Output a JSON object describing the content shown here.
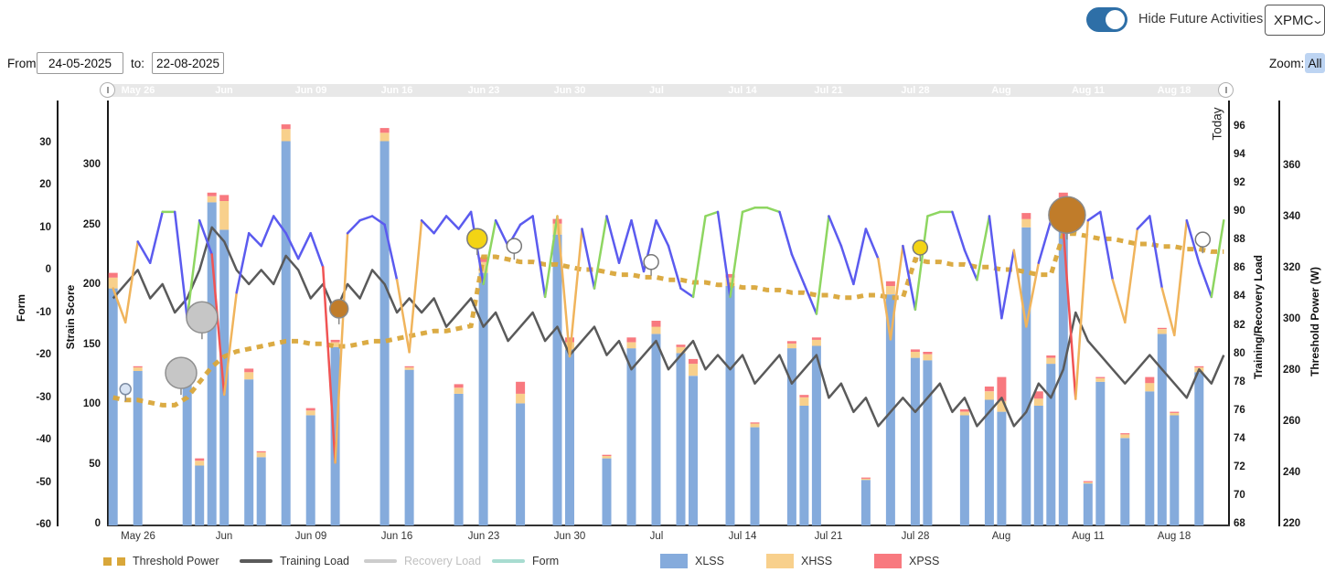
{
  "header": {
    "toggle_label": "Hide Future Activities",
    "metric_select": "XPMC",
    "from_label": "From:",
    "from_value": "24-05-2025",
    "to_label": "to:",
    "to_value": "22-08-2025",
    "zoom_label": "Zoom:",
    "zoom_all_label": "All"
  },
  "today_label": "Today",
  "axes": {
    "form": {
      "title": "Form",
      "ticks": [
        30,
        20,
        10,
        0,
        -10,
        -20,
        -30,
        -40,
        -50,
        -60
      ]
    },
    "strain": {
      "title": "Strain Score",
      "ticks": [
        300,
        250,
        200,
        150,
        100,
        50,
        0
      ]
    },
    "load": {
      "title": "Training/Recovery Load",
      "ticks": [
        96,
        94,
        92,
        90,
        88,
        86,
        84,
        82,
        80,
        78,
        76,
        74,
        72,
        70,
        68
      ]
    },
    "power": {
      "title": "Threshold Power (W)",
      "ticks": [
        360,
        340,
        320,
        300,
        280,
        260,
        240,
        220
      ]
    }
  },
  "legend": {
    "items": [
      {
        "label": "Threshold Power",
        "swatch": "dash",
        "color": "#d9a73a",
        "dim": false
      },
      {
        "label": "Training Load",
        "swatch": "line",
        "color": "#5a5a5a",
        "dim": false
      },
      {
        "label": "Recovery Load",
        "swatch": "line",
        "color": "#cccccc",
        "dim": true
      },
      {
        "label": "Form",
        "swatch": "line",
        "color": "#a8dcd0",
        "dim": false
      },
      {
        "label": "XLSS",
        "swatch": "box",
        "color": "#85abdc",
        "dim": false
      },
      {
        "label": "XHSS",
        "swatch": "box",
        "color": "#f8d08c",
        "dim": false
      },
      {
        "label": "XPSS",
        "swatch": "box",
        "color": "#f8797f",
        "dim": false
      }
    ]
  },
  "colors": {
    "xlss": "#85abdc",
    "xhss": "#f8d08c",
    "xpss": "#f8797f",
    "form_blue": "#5b5bef",
    "form_green": "#8ed661",
    "form_orange": "#f0b45c",
    "form_red": "#f05454",
    "training_load": "#5a5a5a",
    "recovery_load": "#c9c9c9",
    "threshold_power": "#d9a73a",
    "toggle_on": "#2e6fa7",
    "all_button_bg": "#bdd4f2",
    "navigator_bg": "#e8e8e8"
  },
  "chart_data": {
    "type": "mixed",
    "x_start": "2025-05-24",
    "x_end": "2025-08-22",
    "days": 91,
    "today_day": 90,
    "x_tick_days": [
      2,
      9,
      16,
      23,
      30,
      37,
      44,
      51,
      58,
      65,
      72,
      79,
      86
    ],
    "x_tick_labels": [
      "May 26",
      "Jun",
      "Jun 09",
      "Jun 16",
      "Jun 23",
      "Jun 30",
      "Jul",
      "Jul 14",
      "Jul 21",
      "Jul 28",
      "Aug",
      "Aug 11",
      "Aug 18"
    ],
    "axis_ranges": {
      "form": [
        -60,
        40
      ],
      "strain": [
        0,
        355
      ],
      "load": [
        68,
        96
      ],
      "power": [
        220,
        362
      ]
    },
    "bars": [
      {
        "day": 0,
        "xlss": 198,
        "xhss": 9,
        "xpss": 4
      },
      {
        "day": 2,
        "xlss": 129,
        "xhss": 3,
        "xpss": 1
      },
      {
        "day": 6,
        "xlss": 130,
        "xhss": 4,
        "xpss": 2
      },
      {
        "day": 7,
        "xlss": 50,
        "xhss": 4,
        "xpss": 2
      },
      {
        "day": 8,
        "xlss": 270,
        "xhss": 5,
        "xpss": 3
      },
      {
        "day": 9,
        "xlss": 247,
        "xhss": 24,
        "xpss": 5
      },
      {
        "day": 11,
        "xlss": 122,
        "xhss": 6,
        "xpss": 3
      },
      {
        "day": 12,
        "xlss": 57,
        "xhss": 4,
        "xpss": 1
      },
      {
        "day": 14,
        "xlss": 321,
        "xhss": 10,
        "xpss": 4
      },
      {
        "day": 16,
        "xlss": 92,
        "xhss": 4,
        "xpss": 2
      },
      {
        "day": 18,
        "xlss": 149,
        "xhss": 4,
        "xpss": 2
      },
      {
        "day": 22,
        "xlss": 321,
        "xhss": 7,
        "xpss": 4
      },
      {
        "day": 24,
        "xlss": 130,
        "xhss": 2,
        "xpss": 1
      },
      {
        "day": 28,
        "xlss": 110,
        "xhss": 5,
        "xpss": 3
      },
      {
        "day": 30,
        "xlss": 211,
        "xhss": 9,
        "xpss": 4
      },
      {
        "day": 33,
        "xlss": 102,
        "xhss": 8,
        "xpss": 10
      },
      {
        "day": 36,
        "xlss": 243,
        "xhss": 9,
        "xpss": 4
      },
      {
        "day": 37,
        "xlss": 147,
        "xhss": 6,
        "xpss": 4
      },
      {
        "day": 40,
        "xlss": 56,
        "xhss": 2,
        "xpss": 1
      },
      {
        "day": 42,
        "xlss": 148,
        "xhss": 5,
        "xpss": 4
      },
      {
        "day": 44,
        "xlss": 160,
        "xhss": 6,
        "xpss": 5
      },
      {
        "day": 46,
        "xlss": 144,
        "xhss": 5,
        "xpss": 2
      },
      {
        "day": 47,
        "xlss": 125,
        "xhss": 10,
        "xpss": 4
      },
      {
        "day": 50,
        "xlss": 200,
        "xhss": 7,
        "xpss": 3
      },
      {
        "day": 52,
        "xlss": 82,
        "xhss": 3,
        "xpss": 1
      },
      {
        "day": 55,
        "xlss": 148,
        "xhss": 4,
        "xpss": 2
      },
      {
        "day": 56,
        "xlss": 100,
        "xhss": 7,
        "xpss": 2
      },
      {
        "day": 57,
        "xlss": 150,
        "xhss": 5,
        "xpss": 2
      },
      {
        "day": 61,
        "xlss": 38,
        "xhss": 1,
        "xpss": 1
      },
      {
        "day": 63,
        "xlss": 193,
        "xhss": 7,
        "xpss": 4
      },
      {
        "day": 65,
        "xlss": 140,
        "xhss": 5,
        "xpss": 2
      },
      {
        "day": 66,
        "xlss": 138,
        "xhss": 5,
        "xpss": 2
      },
      {
        "day": 69,
        "xlss": 92,
        "xhss": 3,
        "xpss": 2
      },
      {
        "day": 71,
        "xlss": 105,
        "xhss": 7,
        "xpss": 4
      },
      {
        "day": 72,
        "xlss": 95,
        "xhss": 9,
        "xpss": 20
      },
      {
        "day": 74,
        "xlss": 249,
        "xhss": 7,
        "xpss": 5
      },
      {
        "day": 75,
        "xlss": 100,
        "xhss": 6,
        "xpss": 6
      },
      {
        "day": 76,
        "xlss": 135,
        "xhss": 5,
        "xpss": 2
      },
      {
        "day": 77,
        "xlss": 268,
        "xhss": 6,
        "xpss": 4
      },
      {
        "day": 79,
        "xlss": 35,
        "xhss": 1,
        "xpss": 1
      },
      {
        "day": 80,
        "xlss": 120,
        "xhss": 3,
        "xpss": 1
      },
      {
        "day": 82,
        "xlss": 73,
        "xhss": 3,
        "xpss": 1
      },
      {
        "day": 84,
        "xlss": 112,
        "xhss": 7,
        "xpss": 5
      },
      {
        "day": 85,
        "xlss": 160,
        "xhss": 4,
        "xpss": 1
      },
      {
        "day": 86,
        "xlss": 92,
        "xhss": 2,
        "xpss": 1
      },
      {
        "day": 88,
        "xlss": 128,
        "xhss": 4,
        "xpss": 1
      }
    ],
    "form_line": [
      -4,
      -12,
      7,
      2,
      14,
      14,
      -11,
      12,
      4,
      -29,
      -5,
      9,
      6,
      13,
      9,
      3,
      9,
      1,
      -45,
      9,
      12,
      13,
      11,
      -2,
      -19,
      12,
      9,
      13,
      10,
      14,
      -3,
      12,
      6,
      11,
      13,
      -6,
      13,
      -20,
      10,
      -4,
      13,
      2,
      12,
      0,
      12,
      6,
      -4,
      -6,
      13,
      14,
      -6,
      14,
      15,
      15,
      14,
      4,
      -3,
      -10,
      13,
      6,
      -3,
      10,
      3,
      -16,
      6,
      -9,
      13,
      14,
      14,
      5,
      -2,
      13,
      -11,
      5,
      -13,
      2,
      12,
      10,
      -30,
      12,
      14,
      -2,
      -12,
      10,
      13,
      -4,
      -15,
      12,
      2,
      -6,
      12
    ],
    "training_load": [
      84,
      85,
      86,
      84,
      85,
      83,
      84,
      86,
      89,
      88,
      86,
      85,
      86,
      85,
      87,
      86,
      84,
      85,
      83,
      85,
      84,
      86,
      85,
      83,
      84,
      83,
      84,
      82,
      83,
      84,
      82,
      83,
      81,
      82,
      83,
      81,
      82,
      80,
      81,
      82,
      80,
      81,
      79,
      80,
      81,
      79,
      80,
      81,
      79,
      80,
      79,
      80,
      78,
      79,
      80,
      78,
      79,
      80,
      77,
      78,
      76,
      77,
      75,
      76,
      77,
      76,
      77,
      78,
      76,
      77,
      75,
      76,
      77,
      75,
      76,
      78,
      77,
      79,
      83,
      81,
      80,
      79,
      78,
      79,
      80,
      79,
      78,
      77,
      79,
      78,
      80
    ],
    "threshold_power": [
      270,
      269,
      269,
      268,
      267,
      267,
      270,
      276,
      282,
      286,
      288,
      289,
      290,
      291,
      292,
      292,
      291,
      291,
      290,
      290,
      291,
      292,
      292,
      293,
      294,
      295,
      296,
      296,
      297,
      298,
      325,
      325,
      324,
      323,
      323,
      322,
      322,
      321,
      320,
      320,
      319,
      318,
      318,
      317,
      317,
      316,
      316,
      315,
      315,
      314,
      314,
      313,
      313,
      312,
      312,
      311,
      311,
      310,
      310,
      309,
      309,
      310,
      310,
      309,
      309,
      324,
      323,
      323,
      322,
      322,
      321,
      321,
      320,
      320,
      319,
      318,
      318,
      334,
      334,
      333,
      332,
      332,
      331,
      330,
      330,
      329,
      329,
      328,
      328,
      327,
      327
    ],
    "markers": [
      {
        "day": 1.0,
        "value": -27.7,
        "color": "#d9e4f4",
        "stroke": "#7d8ca3",
        "r": 6,
        "kind": "note"
      },
      {
        "day": 5.5,
        "value": -23.9,
        "color": "#c6c6c6",
        "stroke": "#8f8f8f",
        "r": 17,
        "kind": "gray-large"
      },
      {
        "day": 7.2,
        "value": -10.8,
        "color": "#c6c6c6",
        "stroke": "#8f8f8f",
        "r": 17,
        "kind": "gray-large"
      },
      {
        "day": 18.3,
        "value": -8.8,
        "color": "#c07c2a",
        "stroke": "#8a8a8a",
        "r": 10,
        "kind": "orange"
      },
      {
        "day": 29.5,
        "value": 7.7,
        "color": "#f3d414",
        "stroke": "#7a7a7a",
        "r": 11,
        "kind": "yellow"
      },
      {
        "day": 32.5,
        "value": 6.0,
        "color": "#ffffff",
        "stroke": "#777777",
        "r": 8,
        "kind": "white"
      },
      {
        "day": 43.6,
        "value": 2.2,
        "color": "#ffffff",
        "stroke": "#777777",
        "r": 8,
        "kind": "white"
      },
      {
        "day": 65.4,
        "value": 5.6,
        "color": "#f3d414",
        "stroke": "#7a7a7a",
        "r": 8,
        "kind": "yellow"
      },
      {
        "day": 77.3,
        "value": 13.3,
        "color": "#c07c2a",
        "stroke": "#8a8a8a",
        "r": 20,
        "kind": "orange-large"
      },
      {
        "day": 88.3,
        "value": 7.5,
        "color": "#ffffff",
        "stroke": "#777777",
        "r": 8,
        "kind": "white"
      }
    ]
  }
}
